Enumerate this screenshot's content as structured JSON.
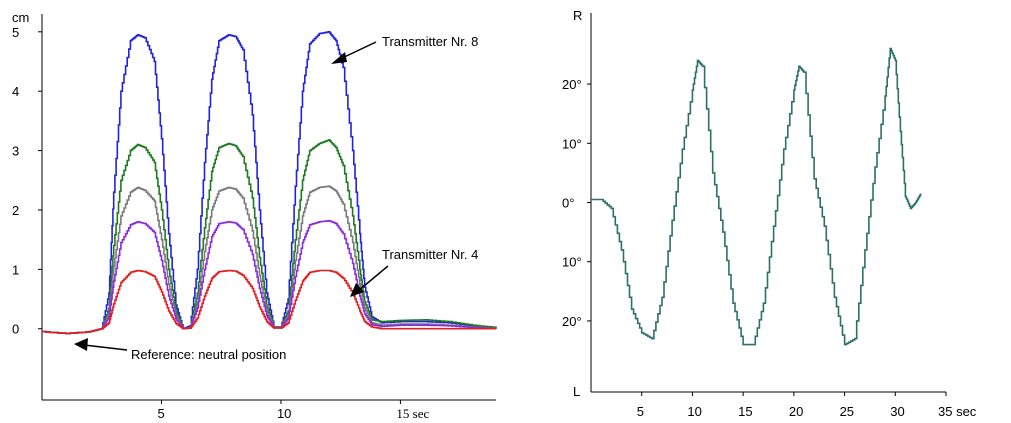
{
  "chart_data": [
    {
      "type": "line",
      "title": "",
      "ylabel": "cm",
      "xlabel": "",
      "y_ticks": [
        "0",
        "1",
        "2",
        "3",
        "4",
        "5"
      ],
      "x_ticks": [
        "5",
        "10",
        "15 sec"
      ],
      "xlim": [
        0,
        19
      ],
      "ylim": [
        -1.2,
        5.3
      ],
      "grid": false,
      "legend": "none",
      "series": [
        {
          "color": "#2222dd",
          "x": [
            0,
            1,
            2,
            2.5,
            2.8,
            3,
            3.3,
            3.7,
            4,
            4.3,
            4.7,
            5,
            5.3,
            5.6,
            5.9,
            6.2,
            6.5,
            6.8,
            7.1,
            7.4,
            7.8,
            8.1,
            8.4,
            8.8,
            9.1,
            9.4,
            9.7,
            10,
            10.3,
            10.6,
            10.9,
            11.2,
            11.6,
            12,
            12.3,
            12.6,
            13,
            13.3,
            13.5,
            13.8,
            14.2,
            15,
            16,
            17,
            18,
            19
          ],
          "y": [
            -0.05,
            -0.08,
            -0.05,
            0.0,
            0.6,
            2.3,
            4.0,
            4.85,
            4.95,
            4.9,
            4.5,
            3.2,
            1.6,
            0.4,
            0.0,
            0.05,
            1.0,
            2.8,
            4.2,
            4.85,
            4.95,
            4.92,
            4.7,
            3.6,
            2.0,
            0.6,
            0.03,
            0.03,
            0.5,
            2.4,
            4.0,
            4.8,
            4.97,
            5.0,
            4.85,
            4.4,
            3.0,
            1.6,
            0.7,
            0.2,
            0.1,
            0.12,
            0.12,
            0.1,
            0.05,
            0.0
          ]
        },
        {
          "color": "#1f7a1f",
          "x": [
            0,
            1,
            2,
            2.5,
            2.8,
            3,
            3.3,
            3.7,
            4,
            4.3,
            4.7,
            5,
            5.3,
            5.6,
            5.9,
            6.2,
            6.5,
            6.8,
            7.1,
            7.4,
            7.8,
            8.1,
            8.4,
            8.8,
            9.1,
            9.4,
            9.7,
            10,
            10.3,
            10.6,
            10.9,
            11.2,
            11.6,
            12,
            12.3,
            12.6,
            13,
            13.3,
            13.5,
            13.8,
            14.2,
            15,
            16,
            17,
            18,
            19
          ],
          "y": [
            -0.05,
            -0.08,
            -0.05,
            0.0,
            0.35,
            1.4,
            2.5,
            3.0,
            3.1,
            3.05,
            2.8,
            2.0,
            1.0,
            0.3,
            0.0,
            0.03,
            0.6,
            1.7,
            2.65,
            3.05,
            3.12,
            3.08,
            2.9,
            2.2,
            1.2,
            0.4,
            0.03,
            0.03,
            0.3,
            1.5,
            2.5,
            3.0,
            3.12,
            3.18,
            3.05,
            2.75,
            1.9,
            1.0,
            0.45,
            0.15,
            0.12,
            0.14,
            0.15,
            0.12,
            0.06,
            0.02
          ]
        },
        {
          "color": "#7a7a7a",
          "x": [
            0,
            1,
            2,
            2.5,
            2.8,
            3,
            3.3,
            3.7,
            4,
            4.3,
            4.7,
            5,
            5.3,
            5.6,
            5.9,
            6.2,
            6.5,
            6.8,
            7.1,
            7.4,
            7.8,
            8.1,
            8.4,
            8.8,
            9.1,
            9.4,
            9.7,
            10,
            10.3,
            10.6,
            10.9,
            11.2,
            11.6,
            12,
            12.3,
            12.6,
            13,
            13.3,
            13.5,
            13.8,
            14.2,
            15,
            16,
            17,
            18,
            19
          ],
          "y": [
            -0.05,
            -0.08,
            -0.05,
            0.0,
            0.27,
            1.05,
            1.9,
            2.3,
            2.38,
            2.33,
            2.15,
            1.5,
            0.75,
            0.22,
            0.0,
            0.02,
            0.45,
            1.3,
            2.0,
            2.32,
            2.38,
            2.35,
            2.2,
            1.65,
            0.9,
            0.3,
            0.02,
            0.02,
            0.23,
            1.15,
            1.9,
            2.3,
            2.38,
            2.4,
            2.32,
            2.1,
            1.45,
            0.75,
            0.35,
            0.1,
            0.06,
            0.08,
            0.08,
            0.06,
            0.03,
            0.0
          ]
        },
        {
          "color": "#8a2be2",
          "x": [
            0,
            1,
            2,
            2.5,
            2.8,
            3,
            3.3,
            3.7,
            4,
            4.3,
            4.7,
            5,
            5.3,
            5.6,
            5.9,
            6.2,
            6.5,
            6.8,
            7.1,
            7.4,
            7.8,
            8.1,
            8.4,
            8.8,
            9.1,
            9.4,
            9.7,
            10,
            10.3,
            10.6,
            10.9,
            11.2,
            11.6,
            12,
            12.3,
            12.6,
            13,
            13.3,
            13.5,
            13.8,
            14.2,
            15,
            16,
            17,
            18,
            19
          ],
          "y": [
            -0.05,
            -0.08,
            -0.05,
            0.0,
            0.2,
            0.8,
            1.45,
            1.75,
            1.8,
            1.77,
            1.62,
            1.15,
            0.55,
            0.17,
            0.0,
            0.02,
            0.35,
            1.0,
            1.55,
            1.77,
            1.8,
            1.78,
            1.67,
            1.25,
            0.68,
            0.22,
            0.02,
            0.02,
            0.18,
            0.88,
            1.45,
            1.75,
            1.8,
            1.82,
            1.77,
            1.6,
            1.1,
            0.55,
            0.25,
            0.07,
            0.04,
            0.06,
            0.06,
            0.05,
            0.02,
            0.0
          ]
        },
        {
          "color": "#e02020",
          "x": [
            0,
            1,
            2,
            2.5,
            2.8,
            3,
            3.3,
            3.7,
            4,
            4.3,
            4.7,
            5,
            5.3,
            5.6,
            5.9,
            6.2,
            6.5,
            6.8,
            7.1,
            7.4,
            7.8,
            8.1,
            8.4,
            8.8,
            9.1,
            9.4,
            9.7,
            10,
            10.3,
            10.6,
            10.9,
            11.2,
            11.6,
            12,
            12.3,
            12.6,
            13,
            13.3,
            13.5,
            13.8,
            14.2,
            15,
            16,
            17,
            18,
            19
          ],
          "y": [
            -0.05,
            -0.08,
            -0.05,
            0.0,
            0.1,
            0.42,
            0.78,
            0.95,
            0.98,
            0.96,
            0.88,
            0.62,
            0.3,
            0.09,
            0.0,
            0.01,
            0.18,
            0.55,
            0.85,
            0.96,
            0.98,
            0.97,
            0.9,
            0.68,
            0.37,
            0.12,
            0.01,
            0.01,
            0.1,
            0.48,
            0.8,
            0.95,
            0.98,
            0.98,
            0.95,
            0.85,
            0.6,
            0.3,
            0.12,
            0.03,
            0.0,
            0.0,
            0.0,
            0.0,
            0.0,
            0.0
          ]
        }
      ],
      "annotations": [
        {
          "text": "Transmitter Nr. 8",
          "x": 12.3,
          "y": 5.0
        },
        {
          "text": "Transmitter Nr. 4",
          "x": 13.5,
          "y": 0.95
        },
        {
          "text": "Reference: neutral position",
          "x": 0.8,
          "y": -0.05
        }
      ]
    },
    {
      "type": "line",
      "title": "",
      "ylabel_top": "R",
      "ylabel_bottom": "L",
      "xlabel": "",
      "y_ticks": [
        "20°",
        "10°",
        "0°",
        "10°",
        "20°"
      ],
      "x_ticks": [
        "5",
        "10",
        "15",
        "20",
        "25",
        "30",
        "35 sec"
      ],
      "xlim": [
        0,
        35
      ],
      "ylim": [
        -32,
        32
      ],
      "grid": false,
      "legend": "none",
      "series": [
        {
          "color": "#2f6f6a",
          "x": [
            0,
            1,
            2,
            3,
            4,
            5,
            6,
            7,
            8,
            9,
            10,
            10.5,
            11,
            12,
            13,
            14,
            15,
            16,
            17,
            18,
            19,
            20,
            20.5,
            21,
            22,
            23,
            24,
            25,
            26,
            27,
            28,
            29,
            29.5,
            30,
            30.5,
            31,
            31.5,
            32,
            32.5
          ],
          "y": [
            0.5,
            0.5,
            -1.0,
            -8,
            -18,
            -22,
            -23,
            -16,
            -3,
            9,
            19,
            24,
            23,
            5,
            -5,
            -17,
            -24,
            -24,
            -17,
            -4,
            9,
            19,
            23,
            22,
            4,
            -4,
            -16,
            -24,
            -23,
            -8,
            6,
            18,
            26,
            24,
            12,
            1,
            -1,
            0,
            1.5
          ]
        }
      ]
    }
  ]
}
